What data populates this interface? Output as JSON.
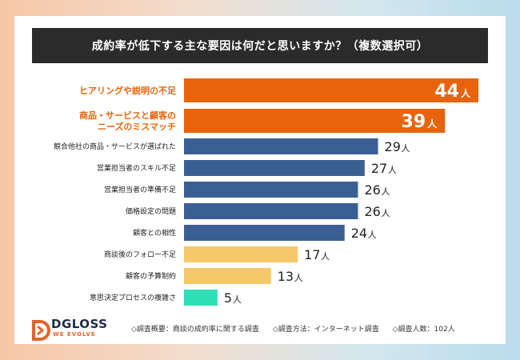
{
  "title": "成約率が低下する主な要因は何だと思いますか？（複数選択可）",
  "colors": {
    "highlight": "#e8640c",
    "blue": "#3b5f93",
    "yellow": "#f5c96a",
    "teal": "#2ee0b4",
    "title_bg": "#2b2b2b"
  },
  "chart_data": {
    "type": "bar",
    "orientation": "horizontal",
    "unit": "人",
    "categories": [
      "ヒアリングや説明の不足",
      "商品・サービスと顧客の\nニーズのミスマッチ",
      "競合他社の商品・サービスが選ばれた",
      "営業担当者のスキル不足",
      "営業担当者の準備不足",
      "価格設定の問題",
      "顧客との相性",
      "商談後のフォロー不足",
      "顧客の予算制約",
      "意思決定プロセスの複雑さ"
    ],
    "values": [
      44,
      39,
      29,
      27,
      26,
      26,
      24,
      17,
      13,
      5
    ],
    "bar_colors": [
      "highlight",
      "highlight",
      "blue",
      "blue",
      "blue",
      "blue",
      "blue",
      "yellow",
      "yellow",
      "teal"
    ],
    "xlim": [
      0,
      44
    ]
  },
  "footer": {
    "logo_main": "DGLOSS",
    "logo_sub": "WE EVOLVE",
    "note_1": "◇調査概要：商談の成約率に関する調査",
    "note_2": "◇調査方法：インターネット調査",
    "note_3": "◇調査人数：102人"
  }
}
